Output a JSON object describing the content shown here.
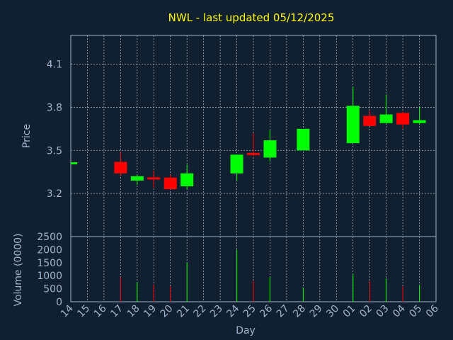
{
  "chart_data": {
    "type": "candlestick",
    "title": "NWL - last updated 05/12/2025",
    "xlabel": "Day",
    "price_panel": {
      "ylabel": "Price",
      "ylim": [
        2.9,
        4.3
      ],
      "yticks": [
        "3.2",
        "3.5",
        "3.8",
        "4.1"
      ],
      "grid": true
    },
    "volume_panel": {
      "ylabel": "Volume (0000)",
      "ylim": [
        0,
        2500
      ],
      "yticks": [
        "0",
        "500",
        "1000",
        "1500",
        "2000",
        "2500"
      ]
    },
    "x_tick_labels": [
      "14",
      "15",
      "16",
      "17",
      "18",
      "19",
      "20",
      "21",
      "22",
      "23",
      "24",
      "25",
      "26",
      "27",
      "28",
      "29",
      "30",
      "01",
      "02",
      "03",
      "04",
      "05",
      "06"
    ],
    "candles": [
      {
        "day": "14",
        "open": 3.41,
        "close": 3.41,
        "high": 3.41,
        "low": 3.41,
        "volume": 0
      },
      {
        "day": "17",
        "open": 3.42,
        "close": 3.34,
        "high": 3.49,
        "low": 3.32,
        "volume": 950
      },
      {
        "day": "18",
        "open": 3.29,
        "close": 3.32,
        "high": 3.33,
        "low": 3.26,
        "volume": 750
      },
      {
        "day": "19",
        "open": 3.31,
        "close": 3.3,
        "high": 3.36,
        "low": 3.24,
        "volume": 650
      },
      {
        "day": "20",
        "open": 3.31,
        "close": 3.23,
        "high": 3.33,
        "low": 3.23,
        "volume": 600
      },
      {
        "day": "21",
        "open": 3.25,
        "close": 3.34,
        "high": 3.4,
        "low": 3.23,
        "volume": 1500
      },
      {
        "day": "24",
        "open": 3.34,
        "close": 3.47,
        "high": 3.47,
        "low": 3.29,
        "volume": 2000
      },
      {
        "day": "25",
        "open": 3.48,
        "close": 3.47,
        "high": 3.62,
        "low": 3.46,
        "volume": 800
      },
      {
        "day": "26",
        "open": 3.45,
        "close": 3.57,
        "high": 3.64,
        "low": 3.42,
        "volume": 950
      },
      {
        "day": "28",
        "open": 3.5,
        "close": 3.65,
        "high": 3.65,
        "low": 3.5,
        "volume": 550
      },
      {
        "day": "01",
        "open": 3.55,
        "close": 3.81,
        "high": 3.94,
        "low": 3.55,
        "volume": 1050
      },
      {
        "day": "02",
        "open": 3.74,
        "close": 3.67,
        "high": 3.78,
        "low": 3.67,
        "volume": 800
      },
      {
        "day": "03",
        "open": 3.69,
        "close": 3.75,
        "high": 3.89,
        "low": 3.69,
        "volume": 900
      },
      {
        "day": "04",
        "open": 3.76,
        "close": 3.68,
        "high": 3.77,
        "low": 3.65,
        "volume": 600
      },
      {
        "day": "05",
        "open": 3.69,
        "close": 3.71,
        "high": 3.8,
        "low": 3.68,
        "volume": 650
      }
    ],
    "colors": {
      "up": "#00ff00",
      "down": "#ff0000",
      "background": "#112030",
      "title": "#ffff00",
      "axis_text": "#9fb6cf"
    }
  }
}
